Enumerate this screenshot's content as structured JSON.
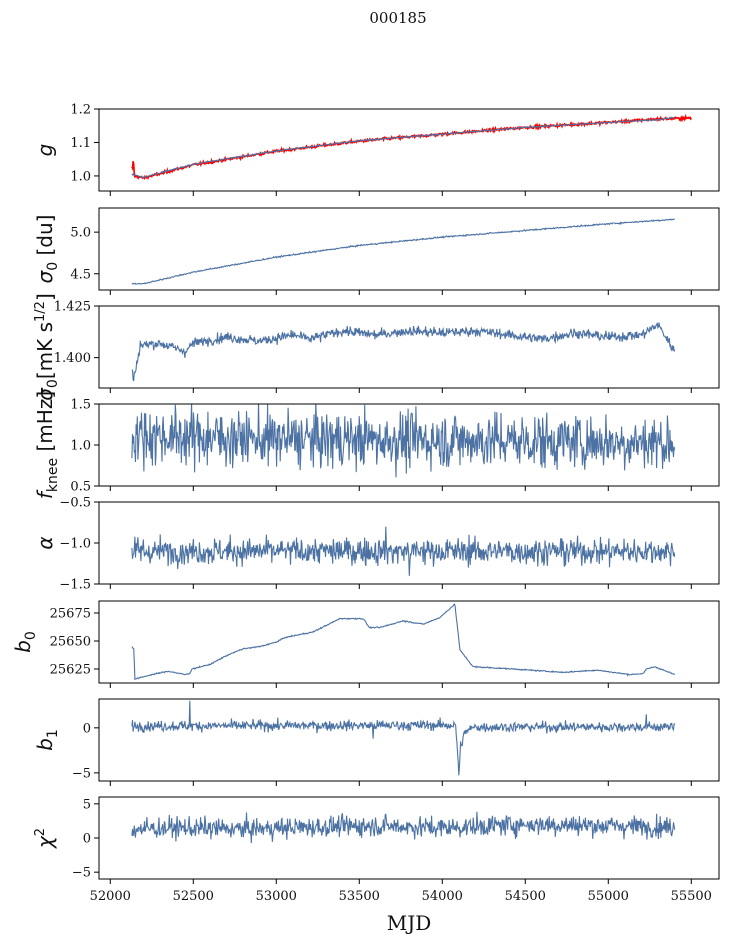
{
  "chart_data": {
    "type": "line",
    "title": "000185",
    "xlabel": "MJD",
    "xlim": [
      51932,
      55667
    ],
    "xticks": [
      52000,
      52500,
      53000,
      53500,
      54000,
      54500,
      55000,
      55500
    ],
    "x_range": [
      52130,
      55400
    ],
    "series_color": "#4c72a4",
    "model_color": "#ff0000",
    "panels": [
      {
        "id": "g",
        "ylabel": {
          "main": "g",
          "sub": "",
          "rest": ""
        },
        "ylim": [
          0.955,
          1.2
        ],
        "yticks": [
          "1.0",
          "1.1",
          "1.2"
        ],
        "series": [
          {
            "name": "g-fit",
            "color": "#ff0000",
            "noise_std": 0.002,
            "x_end": 55500,
            "anchors": [
              [
                52125,
                1.01
              ],
              [
                52128,
                1.065
              ],
              [
                52131,
                1.005
              ],
              [
                52140,
                1.06
              ],
              [
                52143,
                1.0
              ],
              [
                52200,
                0.994
              ],
              [
                52500,
                1.033
              ],
              [
                53000,
                1.074
              ],
              [
                53500,
                1.104
              ],
              [
                54000,
                1.125
              ],
              [
                54500,
                1.145
              ],
              [
                55000,
                1.16
              ],
              [
                55300,
                1.17
              ],
              [
                55500,
                1.173
              ]
            ]
          },
          {
            "name": "g",
            "color": "#4c72a4",
            "noise_std": 0.0008,
            "anchors": [
              [
                52130,
                1.005
              ],
              [
                52200,
                0.996
              ],
              [
                52500,
                1.035
              ],
              [
                53000,
                1.075
              ],
              [
                53500,
                1.105
              ],
              [
                54000,
                1.125
              ],
              [
                54500,
                1.145
              ],
              [
                55000,
                1.16
              ],
              [
                55300,
                1.168
              ],
              [
                55400,
                1.175
              ]
            ]
          }
        ]
      },
      {
        "id": "sigma0-du",
        "ylabel": {
          "main": "σ",
          "sub": "0",
          "rest": " [du]"
        },
        "ylim": [
          4.305,
          5.29
        ],
        "yticks": [
          "4.5",
          "5.0"
        ],
        "series": [
          {
            "name": "sigma0",
            "color": "#4c72a4",
            "noise_std": 0.004,
            "anchors": [
              [
                52130,
                4.38
              ],
              [
                52200,
                4.38
              ],
              [
                52500,
                4.52
              ],
              [
                53000,
                4.7
              ],
              [
                53500,
                4.84
              ],
              [
                54000,
                4.94
              ],
              [
                54500,
                5.02
              ],
              [
                55000,
                5.1
              ],
              [
                55400,
                5.155
              ]
            ]
          }
        ]
      },
      {
        "id": "sigma0-white",
        "ylabel": {
          "main": "σ",
          "sub": "0",
          "rest": "[mK s",
          "sup": "1/2",
          "end": "]"
        },
        "ylim": [
          1.3853,
          1.425
        ],
        "yticks": [
          "1.400",
          "1.425"
        ],
        "series": [
          {
            "name": "sigma0-white",
            "color": "#4c72a4",
            "noise_std": 0.0012,
            "anchors": [
              [
                52130,
                1.394
              ],
              [
                52140,
                1.389
              ],
              [
                52180,
                1.406
              ],
              [
                52300,
                1.407
              ],
              [
                52450,
                1.403
              ],
              [
                52500,
                1.407
              ],
              [
                52700,
                1.41
              ],
              [
                52900,
                1.408
              ],
              [
                53100,
                1.411
              ],
              [
                53200,
                1.409
              ],
              [
                53400,
                1.413
              ],
              [
                53600,
                1.411
              ],
              [
                53800,
                1.413
              ],
              [
                54000,
                1.412
              ],
              [
                54200,
                1.413
              ],
              [
                54400,
                1.411
              ],
              [
                54600,
                1.409
              ],
              [
                54800,
                1.412
              ],
              [
                55000,
                1.41
              ],
              [
                55200,
                1.411
              ],
              [
                55300,
                1.416
              ],
              [
                55400,
                1.403
              ]
            ]
          }
        ]
      },
      {
        "id": "fknee",
        "ylabel": {
          "main": "f",
          "sub": "knee",
          "rest": " [mHz]"
        },
        "ylim": [
          0.5,
          1.5
        ],
        "yticks": [
          "0.5",
          "1.0",
          "1.5"
        ],
        "series": [
          {
            "name": "fknee",
            "color": "#4c72a4",
            "noise_std": 0.17,
            "anchors": [
              [
                52130,
                1.12
              ],
              [
                52500,
                1.1
              ],
              [
                53000,
                1.07
              ],
              [
                54000,
                1.06
              ],
              [
                55400,
                1.03
              ]
            ]
          }
        ]
      },
      {
        "id": "alpha",
        "ylabel": {
          "main": "α",
          "sub": "",
          "rest": ""
        },
        "ylim": [
          -1.5,
          -0.5
        ],
        "yticks": [
          "−1.5",
          "−1.0",
          "−0.5"
        ],
        "series": [
          {
            "name": "alpha",
            "color": "#4c72a4",
            "noise_std": 0.08,
            "anchors": [
              [
                52130,
                -1.1
              ],
              [
                55400,
                -1.1
              ]
            ],
            "spikes": [
              [
                53800,
                -0.75
              ],
              [
                53660,
                -0.8
              ],
              [
                53800,
                -1.4
              ]
            ]
          }
        ]
      },
      {
        "id": "b0",
        "ylabel": {
          "main": "b",
          "sub": "0",
          "rest": ""
        },
        "ylim": [
          25612.5,
          25685.7
        ],
        "yticks": [
          "25625",
          "25650",
          "25675"
        ],
        "series": [
          {
            "name": "b0",
            "color": "#4c72a4",
            "noise_std": 0.25,
            "anchors": [
              [
                52130,
                25645
              ],
              [
                52142,
                25643
              ],
              [
                52148,
                25616
              ],
              [
                52250,
                25620
              ],
              [
                52350,
                25623
              ],
              [
                52450,
                25620
              ],
              [
                52480,
                25621
              ],
              [
                52490,
                25625
              ],
              [
                52600,
                25629
              ],
              [
                52700,
                25637
              ],
              [
                52800,
                25643
              ],
              [
                52900,
                25645
              ],
              [
                53000,
                25649
              ],
              [
                53050,
                25653
              ],
              [
                53150,
                25656
              ],
              [
                53221,
                25658
              ],
              [
                53384,
                25670
              ],
              [
                53524,
                25670
              ],
              [
                53560,
                25662
              ],
              [
                53624,
                25662
              ],
              [
                53765,
                25668
              ],
              [
                53886,
                25665
              ],
              [
                53986,
                25671
              ],
              [
                54076,
                25683
              ],
              [
                54106,
                25642
              ],
              [
                54186,
                25627
              ],
              [
                54427,
                25625
              ],
              [
                54729,
                25622
              ],
              [
                54930,
                25624
              ],
              [
                55131,
                25620
              ],
              [
                55211,
                25621
              ],
              [
                55231,
                25625
              ],
              [
                55281,
                25627
              ],
              [
                55400,
                25620
              ]
            ]
          }
        ]
      },
      {
        "id": "b1",
        "ylabel": {
          "main": "b",
          "sub": "1",
          "rest": ""
        },
        "ylim": [
          -5.9,
          3.2
        ],
        "yticks": [
          "−5",
          "0"
        ],
        "series": [
          {
            "name": "b1",
            "color": "#4c72a4",
            "noise_std": 0.28,
            "anchors": [
              [
                52130,
                0.2
              ],
              [
                54080,
                0.3
              ],
              [
                54095,
                -3.5
              ],
              [
                54100,
                -5.5
              ],
              [
                54110,
                -2
              ],
              [
                54140,
                -0.4
              ],
              [
                54200,
                0.1
              ],
              [
                55400,
                0.1
              ]
            ],
            "spikes": [
              [
                52480,
                3.0
              ],
              [
                53585,
                -1.2
              ],
              [
                55230,
                1.5
              ]
            ]
          }
        ]
      },
      {
        "id": "chi2",
        "ylabel": {
          "main": "χ",
          "sub": "",
          "rest": "",
          "sup": "2"
        },
        "ylim": [
          -6,
          6
        ],
        "yticks": [
          "−5",
          "0",
          "5"
        ],
        "series": [
          {
            "name": "chi2",
            "color": "#4c72a4",
            "noise_std": 0.75,
            "anchors": [
              [
                52130,
                1.3
              ],
              [
                52400,
                1.5
              ],
              [
                52800,
                1.3
              ],
              [
                53200,
                1.6
              ],
              [
                53600,
                1.8
              ],
              [
                54000,
                1.5
              ],
              [
                54500,
                2.0
              ],
              [
                55000,
                1.8
              ],
              [
                55400,
                1.6
              ]
            ]
          }
        ]
      }
    ]
  }
}
